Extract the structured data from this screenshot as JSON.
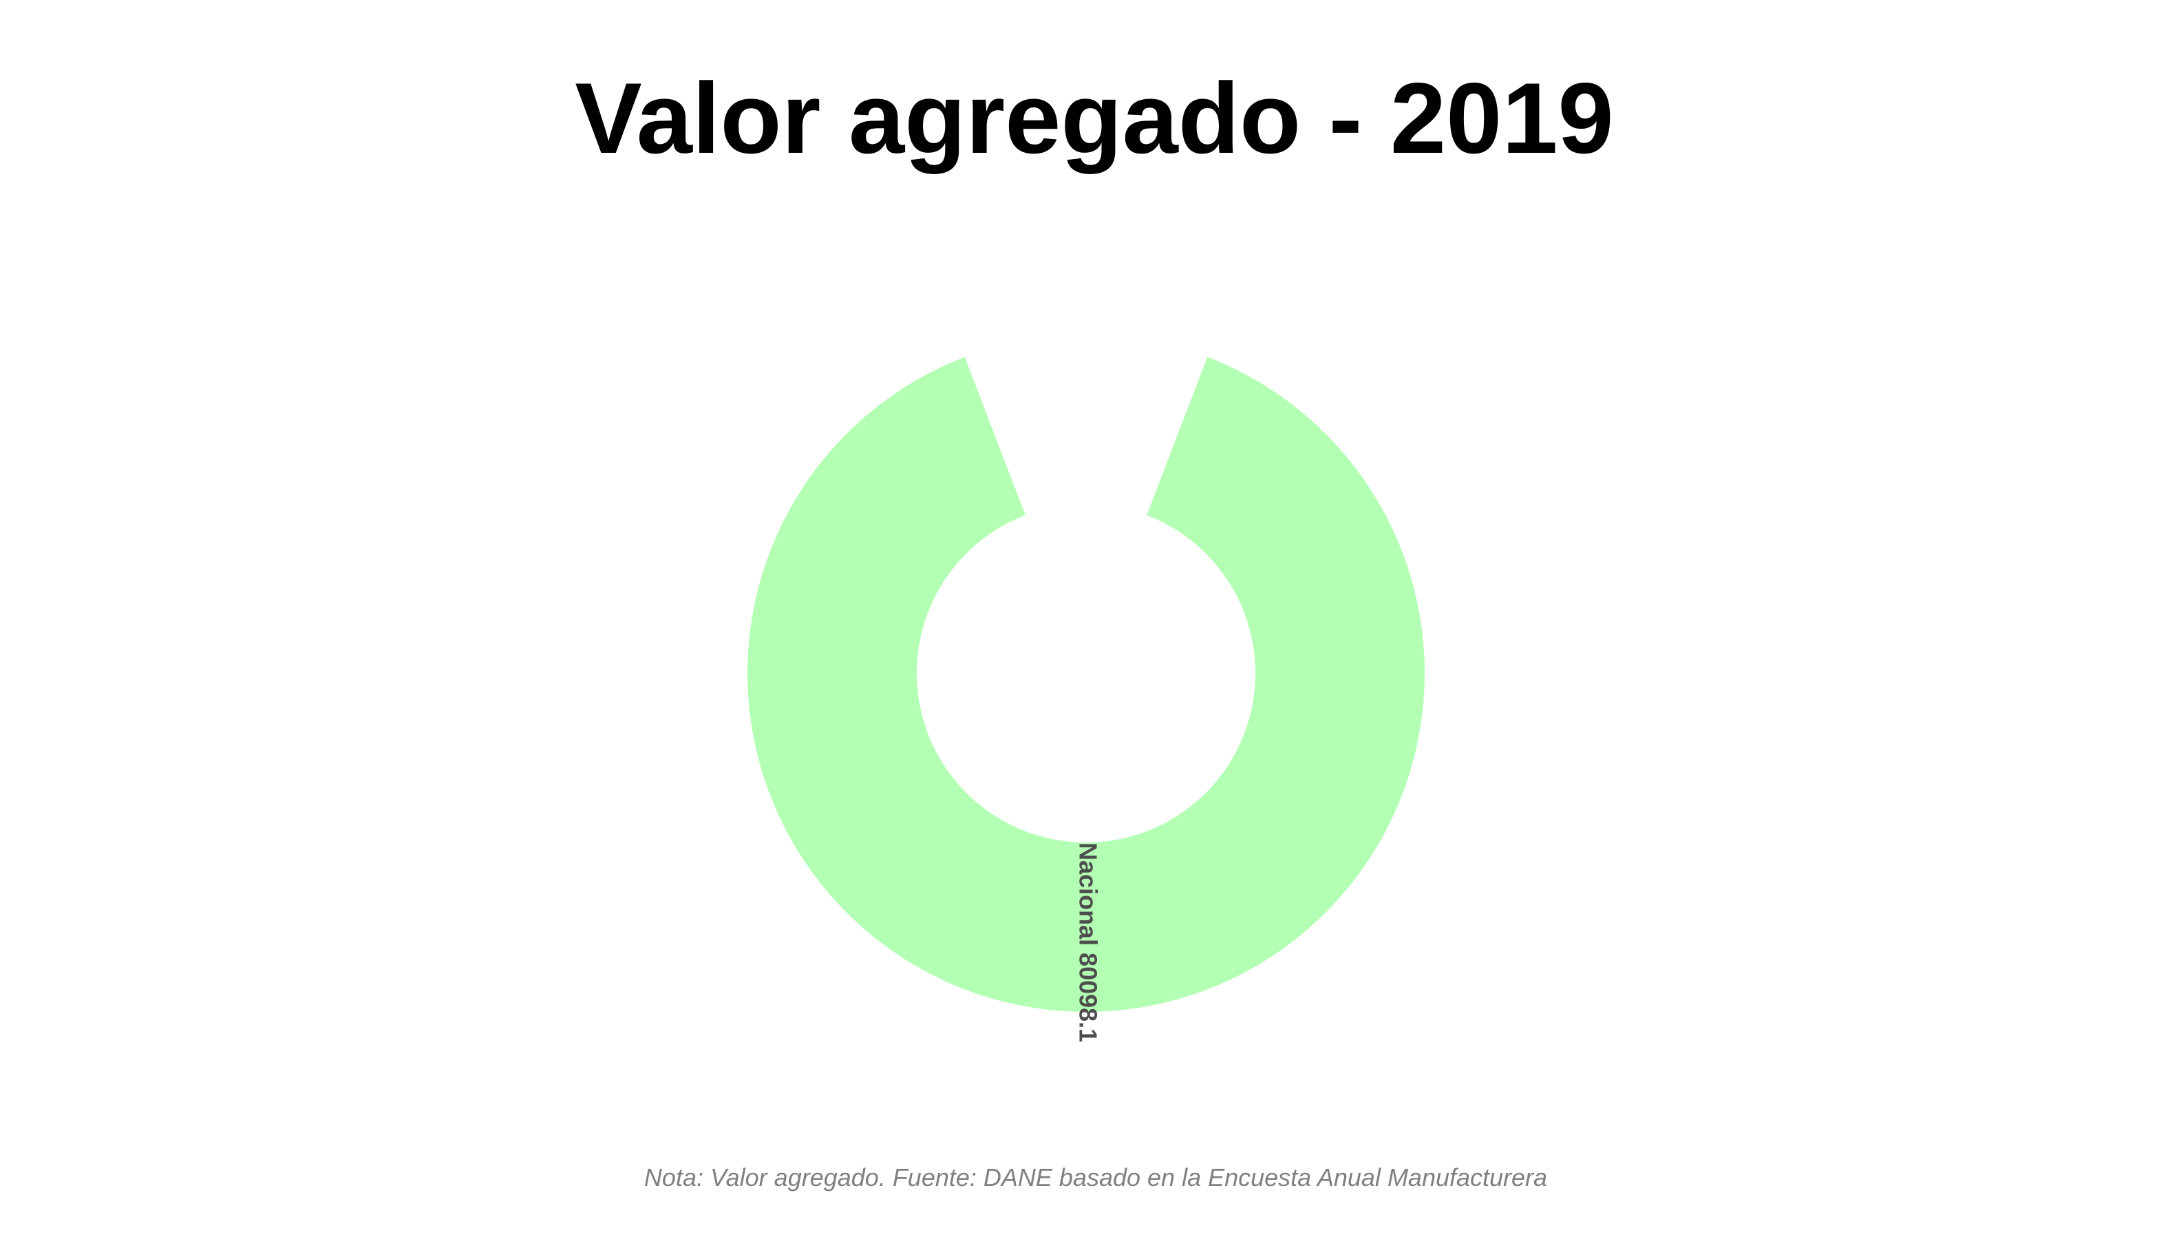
{
  "chart_data": {
    "type": "pie",
    "style": "donut",
    "title": "Valor agregado - 2019",
    "caption": "Nota: Valor agregado. Fuente: DANE basado en la Encuesta Anual Manufacturera",
    "legend": "none",
    "grid": false,
    "slices": [
      {
        "label": "Nacional",
        "value": 80098.1,
        "display": "Nacional 80098.1",
        "color": "#b3ffb3"
      }
    ],
    "colors": {
      "title": "#000000",
      "label": "#4d4d4d",
      "caption": "#808080",
      "background": "#ffffff"
    }
  }
}
